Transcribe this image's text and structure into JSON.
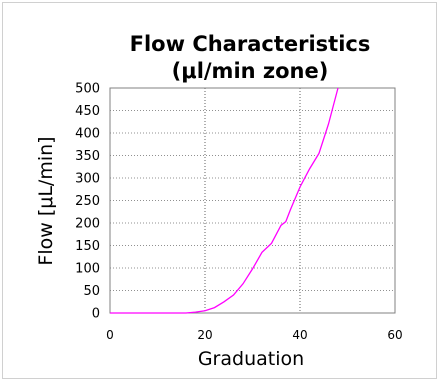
{
  "chart_data": {
    "type": "line",
    "title_line1": "Flow Characteristics",
    "title_line2": "(μl/min zone)",
    "xlabel": "Graduation",
    "ylabel": "Flow [μL/min]",
    "xlim": [
      0,
      60
    ],
    "ylim": [
      0,
      500
    ],
    "x_ticks": [
      0,
      20,
      40,
      60
    ],
    "y_ticks": [
      0,
      50,
      100,
      150,
      200,
      250,
      300,
      350,
      400,
      450,
      500
    ],
    "grid": "dotted",
    "series": [
      {
        "color": "#ff00ff",
        "x": [
          0,
          16,
          18,
          20,
          22,
          24,
          26,
          28,
          30,
          32,
          34,
          36,
          37,
          38,
          40,
          42,
          44,
          46,
          48
        ],
        "y": [
          0,
          0,
          2,
          5,
          12,
          25,
          40,
          65,
          98,
          135,
          155,
          195,
          203,
          230,
          280,
          320,
          355,
          420,
          500
        ]
      }
    ]
  }
}
